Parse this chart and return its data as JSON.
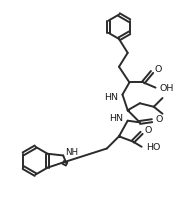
{
  "bg": "#ffffff",
  "lc": "#2b2b2b",
  "lw": 1.4,
  "fs": 6.8,
  "tc": "#1a1a1a",
  "xlim": [
    0,
    100
  ],
  "ylim": [
    0,
    120
  ]
}
